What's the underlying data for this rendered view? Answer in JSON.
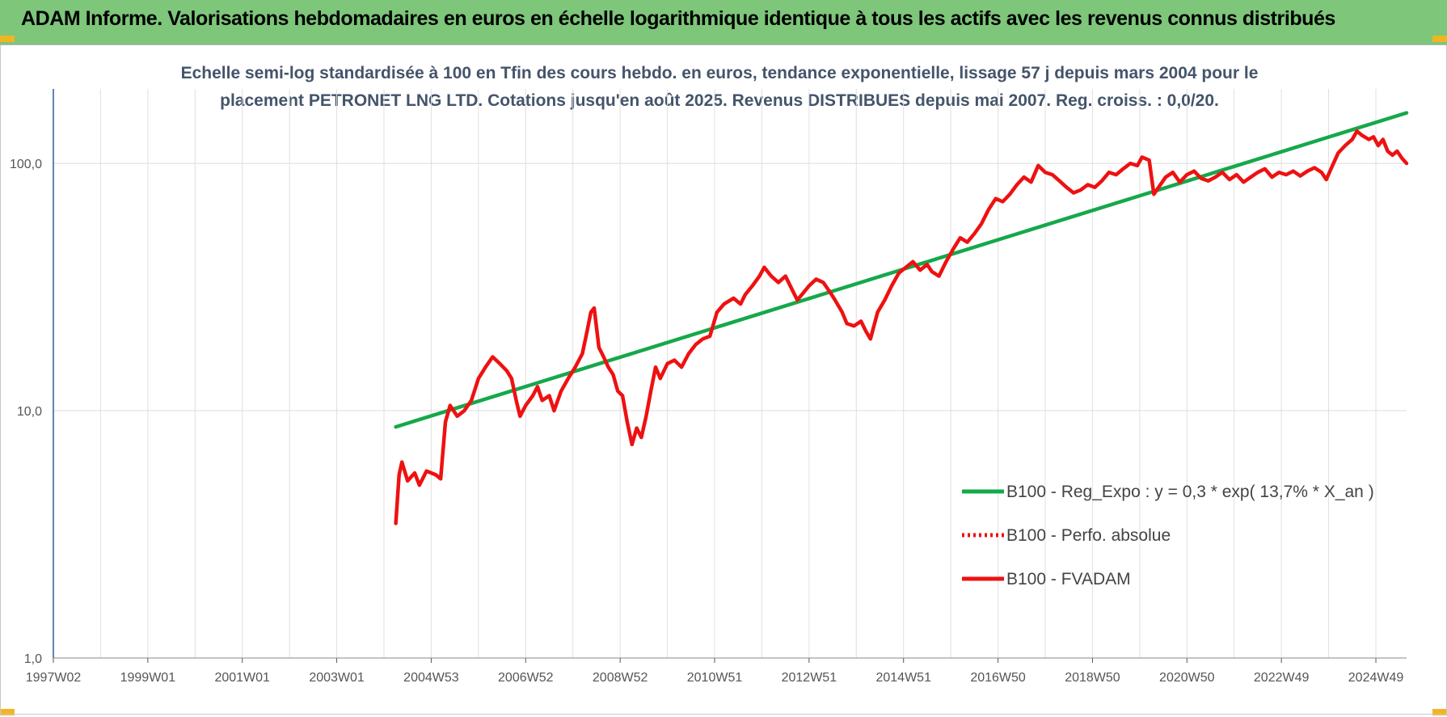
{
  "page": {
    "title": "ADAM Informe. Valorisations hebdomadaires en euros en échelle logarithmique identique à tous les actifs avec les revenus connus distribués"
  },
  "chart_data": {
    "type": "line",
    "title_lines": [
      "Echelle semi-log standardisée à 100 en Tfin des cours hebdo. en euros, tendance exponentielle, lissage 57 j depuis mars 2004 pour le",
      "placement PETRONET LNG LTD. Cotations jusqu'en août 2025. Revenus DISTRIBUES depuis mai 2007. Reg. croiss. : 0,0/20."
    ],
    "y_scale": "log",
    "ylim": [
      1,
      200
    ],
    "y_ticks": [
      {
        "value": 1,
        "label": "1,0"
      },
      {
        "value": 10,
        "label": "10,0"
      },
      {
        "value": 100,
        "label": "100,0"
      }
    ],
    "xlim": [
      1997.0,
      2025.65
    ],
    "x_ticks": [
      {
        "value": 1997.0,
        "label": "1997W02"
      },
      {
        "value": 1999.0,
        "label": "1999W01"
      },
      {
        "value": 2001.0,
        "label": "2001W01"
      },
      {
        "value": 2003.0,
        "label": "2003W01"
      },
      {
        "value": 2005.0,
        "label": "2004W53"
      },
      {
        "value": 2007.0,
        "label": "2006W52"
      },
      {
        "value": 2009.0,
        "label": "2008W52"
      },
      {
        "value": 2011.0,
        "label": "2010W51"
      },
      {
        "value": 2013.0,
        "label": "2012W51"
      },
      {
        "value": 2015.0,
        "label": "2014W51"
      },
      {
        "value": 2017.0,
        "label": "2016W50"
      },
      {
        "value": 2019.0,
        "label": "2018W50"
      },
      {
        "value": 2021.0,
        "label": "2020W50"
      },
      {
        "value": 2023.0,
        "label": "2022W49"
      },
      {
        "value": 2025.0,
        "label": "2024W49"
      }
    ],
    "grid": true,
    "legend_position": "bottom-right",
    "colors": {
      "trend": "#16a84a",
      "perf": "#ee1111",
      "fvadam": "#ee1111"
    },
    "series": [
      {
        "name": "B100 - Reg_Expo : y = 0,3 * exp( 13,7% *  X_an )",
        "style": "solid",
        "points": [
          [
            2004.25,
            8.6
          ],
          [
            2025.65,
            160
          ]
        ]
      },
      {
        "name": "B100 - Perfo. absolue",
        "style": "dotted",
        "points": []
      },
      {
        "name": "B100 - FVADAM",
        "style": "solid",
        "points": [
          [
            2004.25,
            3.5
          ],
          [
            2004.32,
            5.5
          ],
          [
            2004.38,
            6.2
          ],
          [
            2004.5,
            5.2
          ],
          [
            2004.65,
            5.6
          ],
          [
            2004.75,
            5.0
          ],
          [
            2004.9,
            5.7
          ],
          [
            2005.1,
            5.5
          ],
          [
            2005.2,
            5.3
          ],
          [
            2005.3,
            9.0
          ],
          [
            2005.4,
            10.5
          ],
          [
            2005.55,
            9.5
          ],
          [
            2005.7,
            10.0
          ],
          [
            2005.85,
            11.0
          ],
          [
            2006.0,
            13.5
          ],
          [
            2006.15,
            15.0
          ],
          [
            2006.3,
            16.5
          ],
          [
            2006.45,
            15.5
          ],
          [
            2006.6,
            14.5
          ],
          [
            2006.7,
            13.5
          ],
          [
            2006.8,
            11.0
          ],
          [
            2006.88,
            9.5
          ],
          [
            2007.0,
            10.5
          ],
          [
            2007.15,
            11.5
          ],
          [
            2007.25,
            12.5
          ],
          [
            2007.35,
            11.0
          ],
          [
            2007.5,
            11.5
          ],
          [
            2007.6,
            10.0
          ],
          [
            2007.75,
            12.0
          ],
          [
            2007.9,
            13.5
          ],
          [
            2008.05,
            15.0
          ],
          [
            2008.2,
            17.0
          ],
          [
            2008.3,
            21.0
          ],
          [
            2008.38,
            25.0
          ],
          [
            2008.45,
            26.0
          ],
          [
            2008.55,
            18.0
          ],
          [
            2008.65,
            16.5
          ],
          [
            2008.75,
            15.0
          ],
          [
            2008.85,
            14.0
          ],
          [
            2008.95,
            12.0
          ],
          [
            2009.05,
            11.5
          ],
          [
            2009.15,
            9.0
          ],
          [
            2009.25,
            7.3
          ],
          [
            2009.35,
            8.5
          ],
          [
            2009.45,
            7.8
          ],
          [
            2009.55,
            9.5
          ],
          [
            2009.65,
            12.0
          ],
          [
            2009.75,
            15.0
          ],
          [
            2009.85,
            13.5
          ],
          [
            2010.0,
            15.5
          ],
          [
            2010.15,
            16.0
          ],
          [
            2010.3,
            15.0
          ],
          [
            2010.45,
            17.0
          ],
          [
            2010.6,
            18.5
          ],
          [
            2010.75,
            19.5
          ],
          [
            2010.9,
            20.0
          ],
          [
            2011.05,
            25.0
          ],
          [
            2011.2,
            27.0
          ],
          [
            2011.4,
            28.5
          ],
          [
            2011.55,
            27.0
          ],
          [
            2011.65,
            29.5
          ],
          [
            2011.8,
            32.0
          ],
          [
            2011.95,
            35.0
          ],
          [
            2012.05,
            38.0
          ],
          [
            2012.2,
            35.0
          ],
          [
            2012.35,
            33.0
          ],
          [
            2012.5,
            35.0
          ],
          [
            2012.6,
            32.0
          ],
          [
            2012.75,
            28.0
          ],
          [
            2012.85,
            29.5
          ],
          [
            2013.0,
            32.0
          ],
          [
            2013.15,
            34.0
          ],
          [
            2013.3,
            33.0
          ],
          [
            2013.45,
            30.0
          ],
          [
            2013.55,
            28.0
          ],
          [
            2013.7,
            25.0
          ],
          [
            2013.8,
            22.5
          ],
          [
            2013.95,
            22.0
          ],
          [
            2014.1,
            23.0
          ],
          [
            2014.2,
            21.0
          ],
          [
            2014.3,
            19.5
          ],
          [
            2014.45,
            25.0
          ],
          [
            2014.6,
            28.0
          ],
          [
            2014.75,
            32.0
          ],
          [
            2014.9,
            36.0
          ],
          [
            2015.05,
            38.0
          ],
          [
            2015.2,
            40.0
          ],
          [
            2015.35,
            37.0
          ],
          [
            2015.5,
            39.0
          ],
          [
            2015.6,
            36.5
          ],
          [
            2015.75,
            35.0
          ],
          [
            2015.9,
            40.0
          ],
          [
            2016.05,
            45.0
          ],
          [
            2016.2,
            50.0
          ],
          [
            2016.35,
            48.0
          ],
          [
            2016.5,
            52.0
          ],
          [
            2016.65,
            57.0
          ],
          [
            2016.8,
            65.0
          ],
          [
            2016.95,
            72.0
          ],
          [
            2017.1,
            70.0
          ],
          [
            2017.25,
            75.0
          ],
          [
            2017.4,
            82.0
          ],
          [
            2017.55,
            88.0
          ],
          [
            2017.7,
            84.0
          ],
          [
            2017.85,
            98.0
          ],
          [
            2018.0,
            92.0
          ],
          [
            2018.15,
            90.0
          ],
          [
            2018.3,
            85.0
          ],
          [
            2018.45,
            80.0
          ],
          [
            2018.6,
            76.0
          ],
          [
            2018.75,
            78.0
          ],
          [
            2018.9,
            82.0
          ],
          [
            2019.05,
            80.0
          ],
          [
            2019.2,
            85.0
          ],
          [
            2019.35,
            92.0
          ],
          [
            2019.5,
            90.0
          ],
          [
            2019.65,
            95.0
          ],
          [
            2019.8,
            100.0
          ],
          [
            2019.95,
            98.0
          ],
          [
            2020.05,
            106.0
          ],
          [
            2020.2,
            103.0
          ],
          [
            2020.3,
            75.0
          ],
          [
            2020.4,
            80.0
          ],
          [
            2020.55,
            88.0
          ],
          [
            2020.7,
            92.0
          ],
          [
            2020.85,
            84.0
          ],
          [
            2021.0,
            90.0
          ],
          [
            2021.15,
            93.0
          ],
          [
            2021.3,
            87.0
          ],
          [
            2021.45,
            85.0
          ],
          [
            2021.6,
            88.0
          ],
          [
            2021.75,
            92.0
          ],
          [
            2021.9,
            86.0
          ],
          [
            2022.05,
            90.0
          ],
          [
            2022.2,
            84.0
          ],
          [
            2022.35,
            88.0
          ],
          [
            2022.5,
            92.0
          ],
          [
            2022.65,
            95.0
          ],
          [
            2022.8,
            88.0
          ],
          [
            2022.95,
            92.0
          ],
          [
            2023.1,
            90.0
          ],
          [
            2023.25,
            93.0
          ],
          [
            2023.4,
            89.0
          ],
          [
            2023.55,
            93.0
          ],
          [
            2023.7,
            96.0
          ],
          [
            2023.85,
            92.0
          ],
          [
            2023.95,
            86.0
          ],
          [
            2024.05,
            95.0
          ],
          [
            2024.2,
            110.0
          ],
          [
            2024.35,
            118.0
          ],
          [
            2024.5,
            125.0
          ],
          [
            2024.6,
            135.0
          ],
          [
            2024.7,
            130.0
          ],
          [
            2024.85,
            125.0
          ],
          [
            2024.95,
            128.0
          ],
          [
            2025.05,
            118.0
          ],
          [
            2025.15,
            125.0
          ],
          [
            2025.25,
            112.0
          ],
          [
            2025.35,
            108.0
          ],
          [
            2025.45,
            112.0
          ],
          [
            2025.55,
            105.0
          ],
          [
            2025.65,
            100.0
          ]
        ]
      }
    ]
  }
}
